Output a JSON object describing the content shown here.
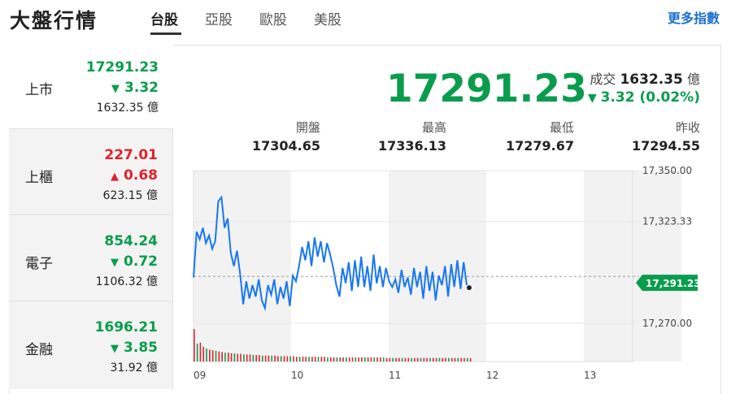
{
  "header": {
    "title": "大盤行情",
    "tabs": [
      {
        "label": "台股"
      },
      {
        "label": "亞股"
      },
      {
        "label": "歐股"
      },
      {
        "label": "美股"
      }
    ],
    "more_label": "更多指數"
  },
  "sidebar": {
    "items": [
      {
        "name": "上市",
        "index": "17291.23",
        "change": "3.32",
        "direction": "down",
        "volume": "1632.35",
        "unit": "億"
      },
      {
        "name": "上櫃",
        "index": "227.01",
        "change": "0.68",
        "direction": "up",
        "volume": "623.15",
        "unit": "億"
      },
      {
        "name": "電子",
        "index": "854.24",
        "change": "0.72",
        "direction": "down",
        "volume": "1106.32",
        "unit": "億"
      },
      {
        "name": "金融",
        "index": "1696.21",
        "change": "3.85",
        "direction": "down",
        "volume": "31.92",
        "unit": "億"
      }
    ]
  },
  "main": {
    "index": "17291.23",
    "turnover_label": "成交",
    "turnover_value": "1632.35",
    "turnover_unit": "億",
    "change_text": "3.32 (0.02%)",
    "stats": [
      {
        "label": "開盤",
        "value": "17304.65"
      },
      {
        "label": "最高",
        "value": "17336.13"
      },
      {
        "label": "最低",
        "value": "17279.67"
      },
      {
        "label": "昨收",
        "value": "17294.55"
      }
    ]
  },
  "chart_data": {
    "type": "line",
    "x_ticks": [
      "09",
      "10",
      "11",
      "12",
      "13"
    ],
    "y_ticks": [
      "17,350.00",
      "17,323.33",
      "17,270.00"
    ],
    "ylim": [
      17250,
      17350
    ],
    "prev_close": 17294.55,
    "current_label": "17,291.23",
    "current_value": 17291.23,
    "series": [
      {
        "values": [
          17294,
          17318,
          17314,
          17320,
          17312,
          17316,
          17309,
          17313,
          17334,
          17336,
          17320,
          17325,
          17307,
          17300,
          17308,
          17296,
          17280,
          17292,
          17283,
          17290,
          17284,
          17293,
          17282,
          17278,
          17290,
          17285,
          17293,
          17280,
          17289,
          17283,
          17292,
          17279,
          17295,
          17292,
          17300,
          17310,
          17303,
          17313,
          17300,
          17315,
          17305,
          17313,
          17302,
          17312,
          17306,
          17299,
          17290,
          17284,
          17299,
          17291,
          17302,
          17287,
          17303,
          17289,
          17305,
          17289,
          17300,
          17287,
          17306,
          17291,
          17300,
          17289,
          17299,
          17292,
          17289,
          17293,
          17286,
          17298,
          17289,
          17294,
          17285,
          17299,
          17289,
          17297,
          17283,
          17300,
          17287,
          17297,
          17282,
          17295,
          17290,
          17300,
          17284,
          17301,
          17289,
          17303,
          17288,
          17302,
          17290
        ]
      }
    ],
    "volume": [
      55,
      30,
      32,
      25,
      22,
      20,
      19,
      18,
      17,
      16,
      15,
      15,
      14,
      14,
      13,
      13,
      12,
      12,
      12,
      11,
      11,
      11,
      10,
      10,
      10,
      10,
      10,
      9,
      9,
      9,
      9,
      9,
      9,
      8,
      8,
      8,
      8,
      8,
      8,
      8,
      8,
      8,
      8,
      7,
      7,
      7,
      7,
      7,
      7,
      7,
      7,
      7,
      7,
      7,
      7,
      7,
      7,
      7,
      7,
      7,
      7,
      7,
      6,
      6,
      6,
      6,
      6,
      6,
      6,
      6,
      6,
      6,
      6,
      6,
      6,
      6,
      6,
      6,
      6,
      6,
      6,
      6,
      6,
      6,
      6,
      6,
      6,
      6,
      6,
      6
    ]
  }
}
